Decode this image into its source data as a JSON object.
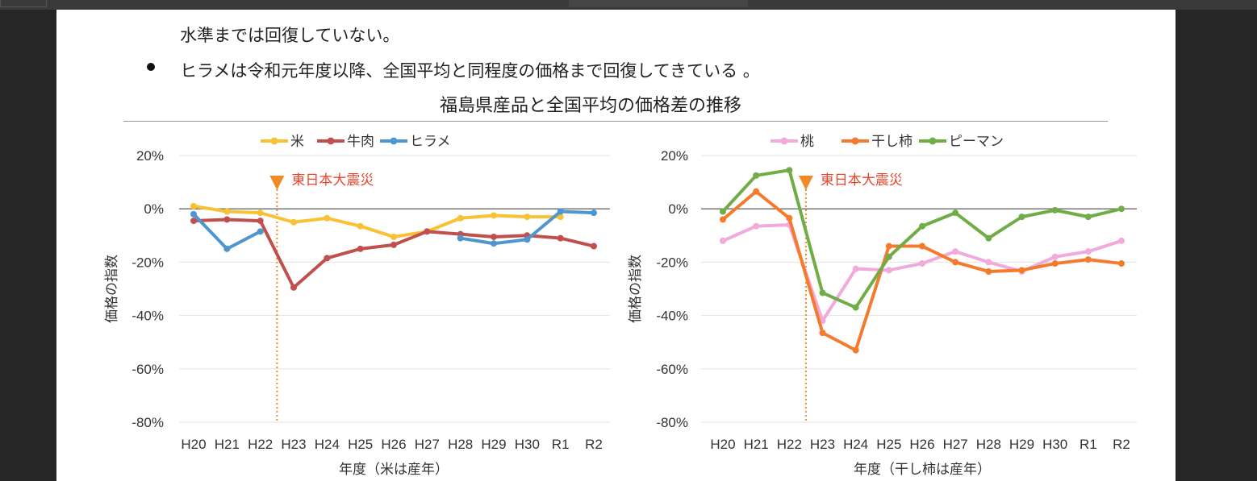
{
  "doc": {
    "line1": "水準までは回復していない。",
    "line2": "ヒラメは令和元年度以降、全国平均と同程度の価格まで回復してきている 。",
    "figure_title": "福島県産品と全国平均の価格差の推移"
  },
  "colors": {
    "rice": "#F9C134",
    "beef": "#C0504D",
    "flounder": "#4E96D0",
    "peach": "#F0AADB",
    "persimmon": "#F47B2E",
    "pepper": "#70AD47",
    "annotation": "#F08A24",
    "annotation_text": "#E8452C"
  },
  "chart_data": [
    {
      "type": "line",
      "ylabel": "価格の指数",
      "xlabel": "年度（米は産年）",
      "ylim": [
        -80,
        20
      ],
      "yticks": [
        "20%",
        "0%",
        "-20%",
        "-40%",
        "-60%",
        "-80%"
      ],
      "categories": [
        "H20",
        "H21",
        "H22",
        "H23",
        "H24",
        "H25",
        "H26",
        "H27",
        "H28",
        "H29",
        "H30",
        "R1",
        "R2"
      ],
      "legend_position": "top",
      "annotation": {
        "label": "東日本大震災",
        "between": [
          "H22",
          "H23"
        ]
      },
      "series": [
        {
          "name": "米",
          "color_key": "rice",
          "values": [
            1,
            -1,
            -1.5,
            -5,
            -3.5,
            -6.5,
            -10.5,
            -8.5,
            -3.5,
            -2.5,
            -3,
            -3,
            null
          ]
        },
        {
          "name": "牛肉",
          "color_key": "beef",
          "values": [
            -4.5,
            -4,
            -4.5,
            -29.5,
            -18.5,
            -15,
            -13.5,
            -8.5,
            -9.5,
            -10.5,
            -10,
            -11,
            -14
          ]
        },
        {
          "name": "ヒラメ",
          "color_key": "flounder",
          "values": [
            -2,
            -15,
            -8.5,
            null,
            null,
            null,
            null,
            null,
            -11,
            -13,
            -11.5,
            -1,
            -1.5
          ]
        }
      ]
    },
    {
      "type": "line",
      "ylabel": "価格の指数",
      "xlabel": "年度（干し柿は産年）",
      "ylim": [
        -80,
        20
      ],
      "yticks": [
        "20%",
        "0%",
        "-20%",
        "-40%",
        "-60%",
        "-80%"
      ],
      "categories": [
        "H20",
        "H21",
        "H22",
        "H23",
        "H24",
        "H25",
        "H26",
        "H27",
        "H28",
        "H29",
        "H30",
        "R1",
        "R2"
      ],
      "legend_position": "top",
      "annotation": {
        "label": "東日本大震災",
        "between": [
          "H22",
          "H23"
        ]
      },
      "series": [
        {
          "name": "桃",
          "color_key": "peach",
          "values": [
            -12,
            -6.5,
            -6,
            -42,
            -22.5,
            -23,
            -20.5,
            -16,
            -20,
            -23.5,
            -18,
            -16,
            -12
          ]
        },
        {
          "name": "干し柿",
          "color_key": "persimmon",
          "values": [
            -4,
            6.5,
            -3.5,
            -46.5,
            -53,
            -14,
            -14,
            -20,
            -23.5,
            -23,
            -20.5,
            -19,
            -20.5
          ]
        },
        {
          "name": "ピーマン",
          "color_key": "pepper",
          "values": [
            -1,
            12.5,
            14.5,
            -31.5,
            -37,
            -18,
            -6.5,
            -1.5,
            -11,
            -3,
            -0.5,
            -3,
            0
          ]
        }
      ]
    }
  ]
}
